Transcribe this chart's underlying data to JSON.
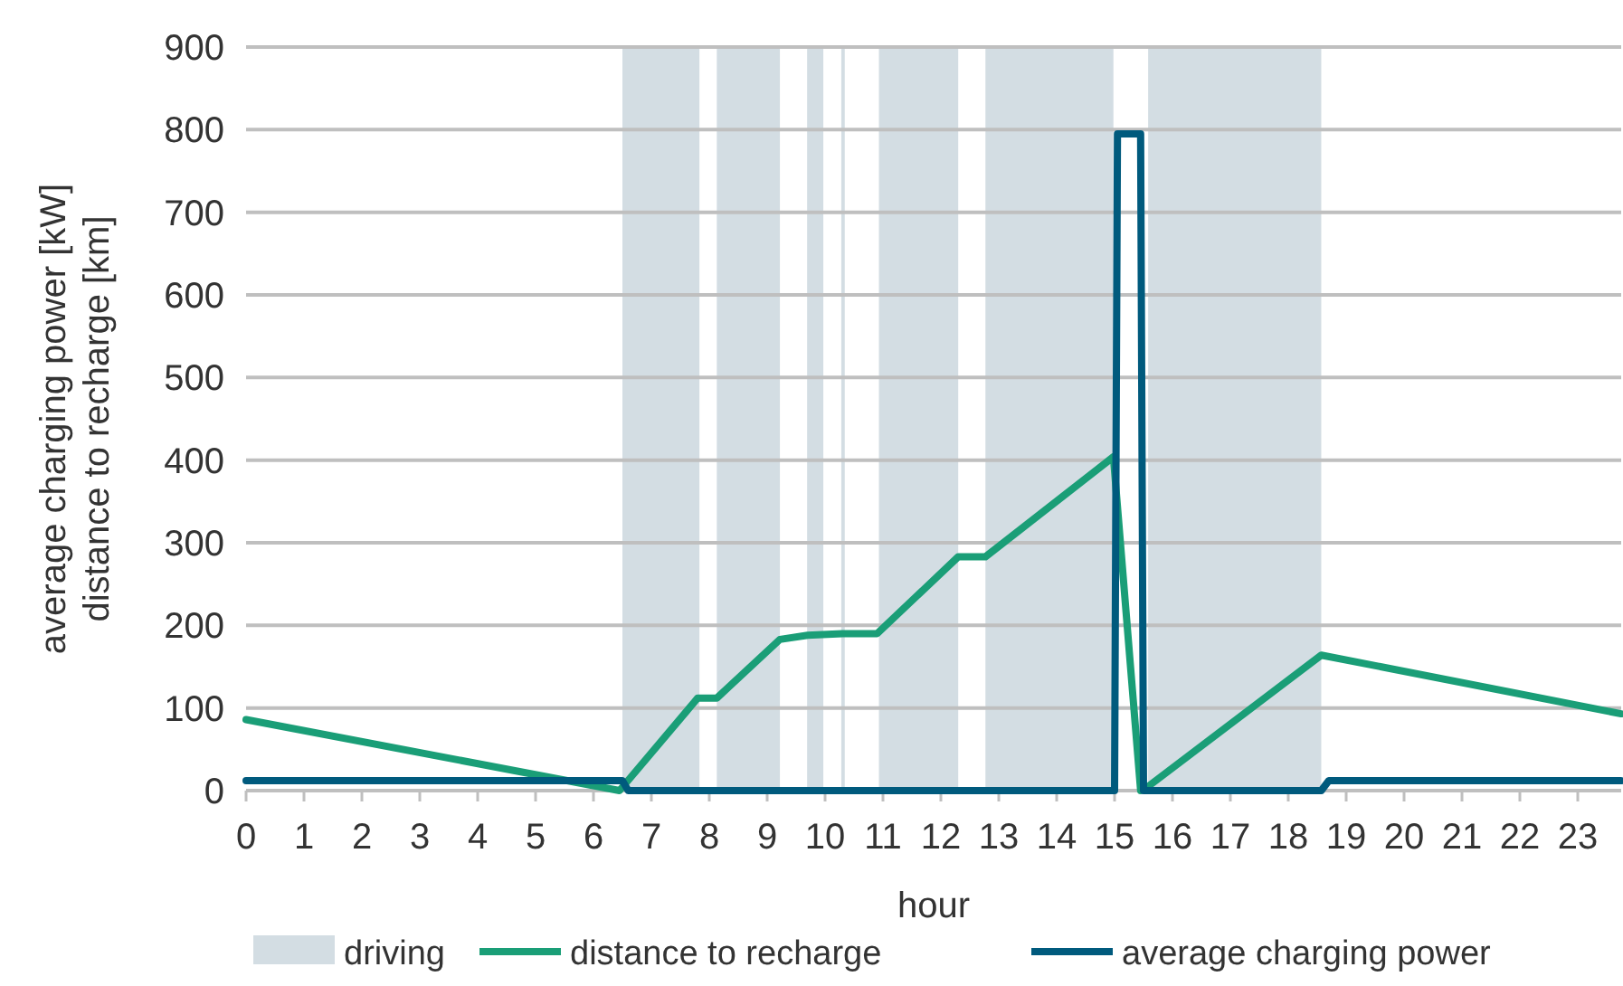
{
  "chart_data": {
    "type": "line",
    "xlabel": "hour",
    "ylabel": "average charging power [kW]\ndistance to recharge [km]",
    "xlim": [
      0,
      23.75
    ],
    "xticks": [
      0,
      1,
      2,
      3,
      4,
      5,
      6,
      7,
      8,
      9,
      10,
      11,
      12,
      13,
      14,
      15,
      16,
      17,
      18,
      19,
      20,
      21,
      22,
      23
    ],
    "ylim": [
      0,
      900
    ],
    "yticks": [
      0,
      100,
      200,
      300,
      400,
      500,
      600,
      700,
      800,
      900
    ],
    "grid": "y",
    "legend": "bottom",
    "line_style": "solid",
    "bands": [
      {
        "axis": "x",
        "from": 6.5,
        "to": 7.83,
        "label": "driving",
        "color": "#d3dde3"
      },
      {
        "axis": "x",
        "from": 8.13,
        "to": 9.22,
        "color": "#d3dde3"
      },
      {
        "axis": "x",
        "from": 9.69,
        "to": 9.97,
        "color": "#d3dde3"
      },
      {
        "axis": "x",
        "from": 10.28,
        "to": 10.34,
        "color": "#d3dde3"
      },
      {
        "axis": "x",
        "from": 10.93,
        "to": 12.3,
        "color": "#d3dde3"
      },
      {
        "axis": "x",
        "from": 12.77,
        "to": 14.98,
        "color": "#d3dde3"
      },
      {
        "axis": "x",
        "from": 15.58,
        "to": 18.57,
        "color": "#d3dde3"
      }
    ],
    "series": [
      {
        "name": "distance to recharge",
        "color": "#1a9e77",
        "x": [
          0,
          6.45,
          7.8,
          8.13,
          9.22,
          9.7,
          10.3,
          10.9,
          12.3,
          12.77,
          14.98,
          15.45,
          15.58,
          18.57,
          23.75
        ],
        "values": [
          86,
          0,
          112,
          112,
          183,
          188,
          190,
          190,
          283,
          283,
          404,
          0,
          5,
          164,
          93
        ]
      },
      {
        "name": "average charging power",
        "color": "#005a7d",
        "x": [
          0,
          6.5,
          6.6,
          15.0,
          15.05,
          15.45,
          15.5,
          18.57,
          18.7,
          23.75
        ],
        "values": [
          12,
          12,
          0,
          0,
          795,
          795,
          0,
          0,
          12,
          12
        ]
      }
    ]
  }
}
